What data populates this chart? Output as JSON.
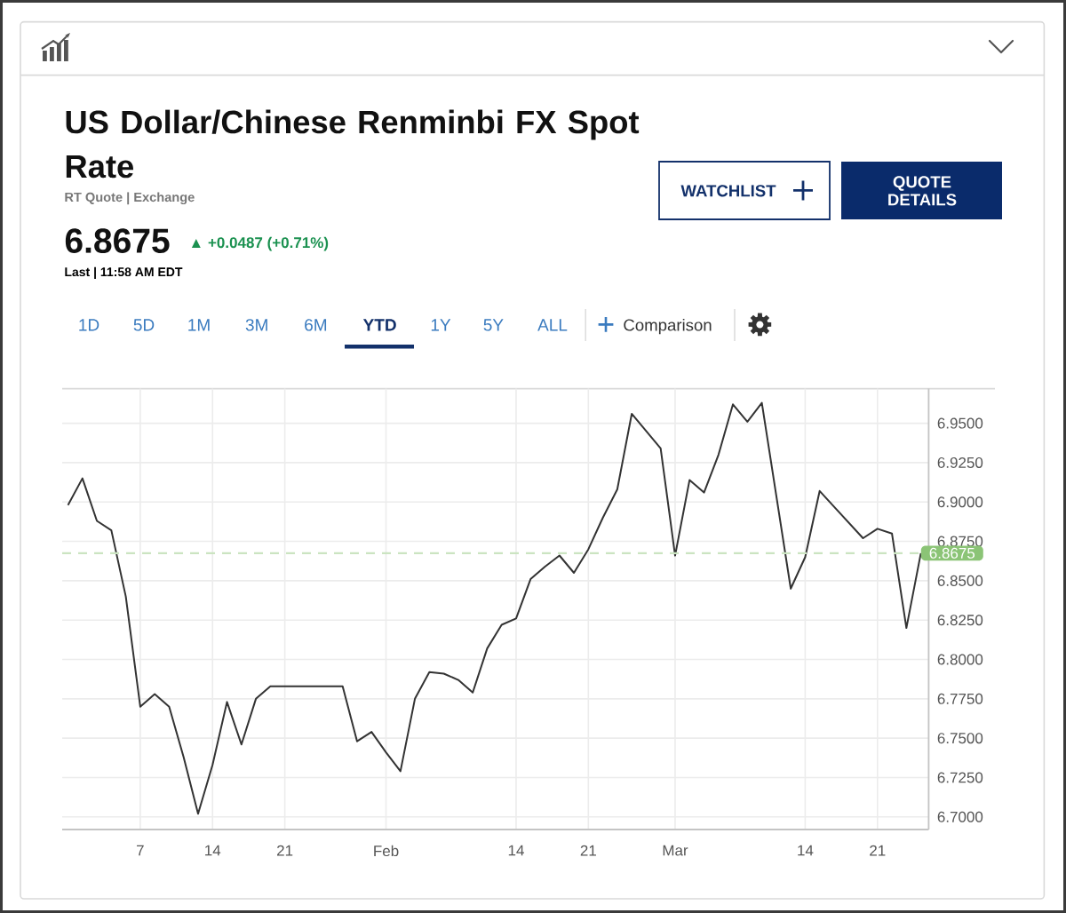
{
  "chart_data": {
    "type": "line",
    "title": "US Dollar/Chinese Renminbi FX Spot Rate",
    "subtitle": "RT Quote | Exchange",
    "categories": [
      null,
      null,
      null,
      null,
      null,
      "7",
      null,
      null,
      null,
      null,
      "14",
      null,
      null,
      null,
      null,
      "21",
      null,
      null,
      null,
      null,
      null,
      null,
      "Feb",
      null,
      null,
      null,
      null,
      null,
      null,
      null,
      null,
      "14",
      null,
      null,
      null,
      null,
      "21",
      null,
      null,
      null,
      null,
      null,
      "Mar",
      null,
      null,
      null,
      null,
      null,
      null,
      null,
      null,
      "14",
      null,
      null,
      null,
      null,
      "21",
      null,
      null,
      null
    ],
    "series": [
      {
        "color": "#333333",
        "values": [
          6.898,
          6.915,
          6.888,
          6.882,
          6.84,
          6.77,
          6.778,
          6.77,
          6.738,
          6.702,
          6.733,
          6.773,
          6.746,
          6.775,
          6.783,
          6.783,
          6.783,
          6.783,
          6.783,
          6.783,
          6.748,
          6.754,
          6.741,
          6.729,
          6.775,
          6.792,
          6.791,
          6.787,
          6.779,
          6.807,
          6.822,
          6.826,
          6.851,
          6.859,
          6.866,
          6.855,
          6.87,
          6.89,
          6.908,
          6.956,
          6.945,
          6.934,
          6.866,
          6.914,
          6.906,
          6.93,
          6.962,
          6.951,
          6.963,
          6.904,
          6.845,
          6.865,
          6.907,
          6.897,
          6.887,
          6.877,
          6.883,
          6.88,
          6.82,
          6.8675
        ]
      }
    ],
    "ylim": [
      6.692,
      6.972
    ],
    "yticks": [
      {
        "value": 6.7,
        "label": "6.7000"
      },
      {
        "value": 6.725,
        "label": "6.7250"
      },
      {
        "value": 6.75,
        "label": "6.7500"
      },
      {
        "value": 6.775,
        "label": "6.7750"
      },
      {
        "value": 6.8,
        "label": "6.8000"
      },
      {
        "value": 6.825,
        "label": "6.8250"
      },
      {
        "value": 6.85,
        "label": "6.8500"
      },
      {
        "value": 6.875,
        "label": "6.8750"
      },
      {
        "value": 6.9,
        "label": "6.9000"
      },
      {
        "value": 6.925,
        "label": "6.9250"
      },
      {
        "value": 6.95,
        "label": "6.9500"
      }
    ],
    "grid": true,
    "ref_lines": [
      {
        "axis": "y",
        "value": 6.8675,
        "label": "6.8675",
        "color": "#cbe4c1",
        "line_style": "dashed"
      }
    ],
    "annotations": [
      "6.8675",
      "▲ +0.0487 (+0.71%)",
      "Last | 11:58 AM EDT",
      "WATCHLIST",
      "QUOTE DETAILS",
      "1D",
      "5D",
      "1M",
      "3M",
      "6M",
      "YTD",
      "1Y",
      "5Y",
      "ALL",
      "Comparison"
    ]
  }
}
